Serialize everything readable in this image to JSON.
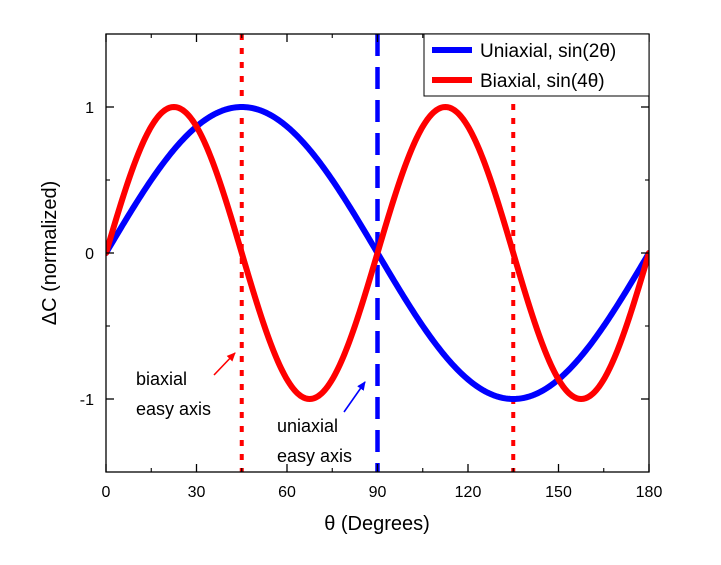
{
  "chart_data": {
    "type": "line",
    "title": "",
    "xlabel": "θ (Degrees)",
    "ylabel": "ΔC (normalized)",
    "xlim": [
      0,
      180
    ],
    "ylim": [
      -1.5,
      1.5
    ],
    "xticks": [
      0,
      30,
      60,
      90,
      120,
      150,
      180
    ],
    "yticks": [
      -1,
      0,
      1
    ],
    "xtick_labels": [
      "0",
      "30",
      "60",
      "90",
      "120",
      "150",
      "180"
    ],
    "ytick_labels": [
      "-1",
      "0",
      "1"
    ],
    "grid": false,
    "legend_position": "top-right",
    "series": [
      {
        "name": "Uniaxial, sin(2θ)",
        "color": "#0000ff",
        "function": "sin(2θ)",
        "x": [
          0,
          15,
          30,
          45,
          60,
          75,
          90,
          105,
          120,
          135,
          150,
          165,
          180
        ],
        "y": [
          0,
          0.5,
          0.866,
          1,
          0.866,
          0.5,
          0,
          -0.5,
          -0.866,
          -1,
          -0.866,
          -0.5,
          0
        ]
      },
      {
        "name": "Biaxial, sin(4θ)",
        "color": "#ff0000",
        "function": "sin(4θ)",
        "x": [
          0,
          11.25,
          22.5,
          33.75,
          45,
          56.25,
          67.5,
          78.75,
          90,
          101.25,
          112.5,
          123.75,
          135,
          146.25,
          157.5,
          168.75,
          180
        ],
        "y": [
          0,
          0.707,
          1,
          0.707,
          0,
          -0.707,
          -1,
          -0.707,
          0,
          0.707,
          1,
          0.707,
          0,
          -0.707,
          -1,
          -0.707,
          0
        ]
      }
    ],
    "vertical_lines": [
      {
        "x": 45,
        "color": "#ff0000",
        "style": "dotted"
      },
      {
        "x": 90,
        "color": "#0000ff",
        "style": "dashed"
      },
      {
        "x": 135,
        "color": "#ff0000",
        "style": "dotted"
      }
    ],
    "annotations": [
      {
        "lines": [
          "biaxial",
          "easy axis"
        ],
        "arrow_color": "#ff0000",
        "points_to_x": 45
      },
      {
        "lines": [
          "uniaxial",
          "easy axis"
        ],
        "arrow_color": "#0000ff",
        "points_to_x": 90
      }
    ]
  }
}
